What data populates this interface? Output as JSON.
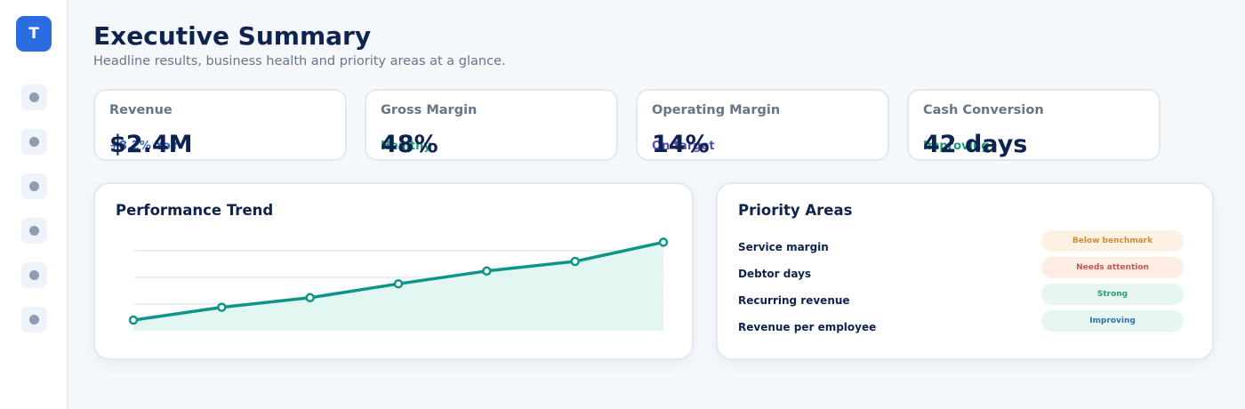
{
  "app": {
    "logo_letter": "T"
  },
  "sidebar": {
    "items": [
      {
        "icon": "nav-dot-icon"
      },
      {
        "icon": "nav-dot-icon"
      },
      {
        "icon": "nav-dot-icon"
      },
      {
        "icon": "nav-dot-icon"
      },
      {
        "icon": "nav-dot-icon"
      },
      {
        "icon": "nav-dot-icon"
      }
    ]
  },
  "header": {
    "title": "Executive Summary",
    "subtitle": "Headline results, business health and priority areas at a glance."
  },
  "kpis": [
    {
      "label": "Revenue",
      "note": "+8.2% YoY",
      "note_color": "#3366cc",
      "value": "$2.4M"
    },
    {
      "label": "Gross Margin",
      "note": "Healthy",
      "note_color": "#1a9b6f",
      "value": "48%"
    },
    {
      "label": "Operating Margin",
      "note": "On target",
      "note_color": "#5b4bb5",
      "value": "14%"
    },
    {
      "label": "Cash Conversion",
      "note": "Improving",
      "note_color": "#1a9b6f",
      "value": "42 days"
    }
  ],
  "trend": {
    "title": "Performance Trend",
    "line_color": "#0f9488",
    "fill_color": "#e2f7f2"
  },
  "chart_data": {
    "type": "line",
    "series": [
      {
        "values": [
          10,
          22,
          31,
          44,
          56,
          65,
          83
        ]
      }
    ],
    "ylim": [
      0,
      100
    ],
    "grid": true
  },
  "priority": {
    "title": "Priority Areas",
    "items": [
      {
        "label": "Service margin",
        "status": "Below benchmark",
        "status_color": "#d98b2b",
        "status_bg": "#fdf1e4"
      },
      {
        "label": "Debtor days",
        "status": "Needs attention",
        "status_color": "#c9584f",
        "status_bg": "#fdede4"
      },
      {
        "label": "Recurring revenue",
        "status": "Strong",
        "status_color": "#2f9c72",
        "status_bg": "#e7f6f1"
      },
      {
        "label": "Revenue per employee",
        "status": "Improving",
        "status_color": "#2f6fb5",
        "status_bg": "#e7f6f1"
      }
    ]
  }
}
